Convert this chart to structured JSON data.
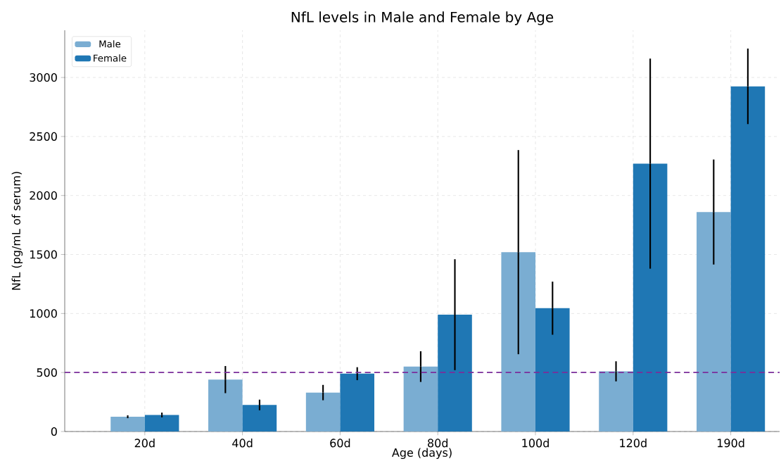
{
  "chart_data": {
    "type": "bar",
    "title": "NfL levels in Male and Female by Age",
    "xlabel": "Age (days)",
    "ylabel": "NfL (pg/mL of serum)",
    "categories": [
      "20d",
      "40d",
      "60d",
      "80d",
      "100d",
      "120d",
      "190d"
    ],
    "series": [
      {
        "name": "Male",
        "color": "#7aadd2",
        "values": [
          125,
          440,
          330,
          550,
          1520,
          510,
          1860
        ],
        "errors": [
          12,
          115,
          65,
          130,
          865,
          85,
          445
        ]
      },
      {
        "name": "Female",
        "color": "#1f77b4",
        "values": [
          140,
          225,
          490,
          990,
          1045,
          2270,
          2925
        ],
        "errors": [
          20,
          45,
          55,
          470,
          225,
          890,
          320
        ]
      }
    ],
    "ylim": [
      0,
      3400
    ],
    "yticks": [
      0,
      500,
      1000,
      1500,
      2000,
      2500,
      3000
    ],
    "ref_lines": [
      {
        "axis": "y",
        "value": 500,
        "color": "#7b2d9b",
        "line_style": "dashed"
      }
    ],
    "grid": true,
    "legend": "top left"
  }
}
